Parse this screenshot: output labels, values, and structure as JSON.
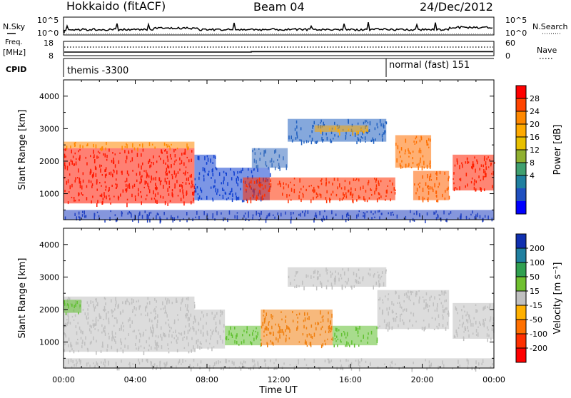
{
  "header": {
    "station": "Hokkaido (fitACF)",
    "beam": "Beam 04",
    "date": "24/Dec/2012"
  },
  "top_panels": {
    "noise_left_label": "N.Sky",
    "noise_right_label": "N.Search",
    "noise_ticks": [
      "10^5",
      "10^0"
    ],
    "freq_label_1": "Freq.",
    "freq_label_2": "[MHz]",
    "freq_ticks": [
      "18",
      "8"
    ],
    "nave_ticks": [
      "60",
      "0"
    ],
    "nave_label": "Nave",
    "cpid_label": "CPID",
    "cpid_entries": [
      {
        "text": "themis -3300"
      },
      {
        "text": "normal (fast) 151"
      }
    ]
  },
  "chart_data": [
    {
      "type": "heatmap",
      "title": "",
      "xlabel": "Time UT",
      "ylabel": "Slant Range [km]",
      "x_ticks": [
        "00:00",
        "04:00",
        "08:00",
        "12:00",
        "16:00",
        "20:00",
        "00:00"
      ],
      "y_ticks": [
        1000,
        2000,
        3000,
        4000
      ],
      "ylim": [
        200,
        4500
      ],
      "colorbar": {
        "label": "Power [dB]",
        "ticks": [
          "28",
          "24",
          "20",
          "16",
          "12",
          "8",
          "4"
        ],
        "colors": [
          "#ff0000",
          "#ff4400",
          "#ff8800",
          "#ffaa00",
          "#e8c000",
          "#90b030",
          "#40a070",
          "#2080a0",
          "#2050c0",
          "#0000ff"
        ]
      },
      "scatter_regions": [
        {
          "t0": 0.0,
          "t1": 7.3,
          "r0": 700,
          "r1": 2400,
          "color": "#ff1800"
        },
        {
          "t0": 0.0,
          "t1": 7.3,
          "r0": 2400,
          "r1": 2600,
          "color": "#ff8800"
        },
        {
          "t0": 7.3,
          "t1": 8.5,
          "r0": 800,
          "r1": 2200,
          "color": "#1040d0"
        },
        {
          "t0": 8.5,
          "t1": 11.5,
          "r0": 800,
          "r1": 1800,
          "color": "#1040d0"
        },
        {
          "t0": 10.0,
          "t1": 18.5,
          "r0": 800,
          "r1": 1500,
          "color": "#ff3000"
        },
        {
          "t0": 10.5,
          "t1": 12.5,
          "r0": 1800,
          "r1": 2400,
          "color": "#3a70c0"
        },
        {
          "t0": 12.5,
          "t1": 18.0,
          "r0": 2600,
          "r1": 3300,
          "color": "#2060c0"
        },
        {
          "t0": 14.0,
          "t1": 17.0,
          "r0": 2900,
          "r1": 3100,
          "color": "#ffaa00"
        },
        {
          "t0": 18.5,
          "t1": 20.5,
          "r0": 1800,
          "r1": 2800,
          "color": "#ff7000"
        },
        {
          "t0": 19.5,
          "t1": 21.5,
          "r0": 800,
          "r1": 1700,
          "color": "#ff6000"
        },
        {
          "t0": 21.7,
          "t1": 24.0,
          "r0": 1100,
          "r1": 2200,
          "color": "#ff2000"
        },
        {
          "t0": 0.0,
          "t1": 24.0,
          "r0": 200,
          "r1": 500,
          "color": "#2040c0"
        }
      ]
    },
    {
      "type": "heatmap",
      "title": "",
      "xlabel": "Time UT",
      "ylabel": "Slant Range [km]",
      "x_ticks": [
        "00:00",
        "04:00",
        "08:00",
        "12:00",
        "16:00",
        "20:00",
        "00:00"
      ],
      "y_ticks": [
        1000,
        2000,
        3000,
        4000
      ],
      "ylim": [
        200,
        4500
      ],
      "colorbar": {
        "label": "Velocity [m s⁻¹]",
        "ticks": [
          "200",
          "100",
          "50",
          "15",
          "-15",
          "-50",
          "-100",
          "-200"
        ],
        "colors": [
          "#1030b0",
          "#2080a0",
          "#30a050",
          "#70c030",
          "#c0c0c0",
          "#ffb000",
          "#ff7000",
          "#ff3000",
          "#ff0000"
        ]
      },
      "scatter_regions": [
        {
          "t0": 0.0,
          "t1": 7.3,
          "r0": 700,
          "r1": 2400,
          "color": "#c0c0c0"
        },
        {
          "t0": 0.0,
          "t1": 1.0,
          "r0": 1900,
          "r1": 2300,
          "color": "#60c030"
        },
        {
          "t0": 7.3,
          "t1": 9.0,
          "r0": 800,
          "r1": 2000,
          "color": "#c0c0c0"
        },
        {
          "t0": 9.0,
          "t1": 11.0,
          "r0": 900,
          "r1": 1500,
          "color": "#60c030"
        },
        {
          "t0": 11.0,
          "t1": 15.0,
          "r0": 900,
          "r1": 2000,
          "color": "#f08010"
        },
        {
          "t0": 15.0,
          "t1": 17.5,
          "r0": 900,
          "r1": 1500,
          "color": "#60c030"
        },
        {
          "t0": 12.5,
          "t1": 18.0,
          "r0": 2700,
          "r1": 3300,
          "color": "#c0c0c0"
        },
        {
          "t0": 17.5,
          "t1": 21.5,
          "r0": 1400,
          "r1": 2600,
          "color": "#c0c0c0"
        },
        {
          "t0": 21.7,
          "t1": 24.0,
          "r0": 1100,
          "r1": 2200,
          "color": "#c0c0c0"
        },
        {
          "t0": 0.0,
          "t1": 24.0,
          "r0": 200,
          "r1": 500,
          "color": "#c0c0c0"
        }
      ]
    }
  ]
}
